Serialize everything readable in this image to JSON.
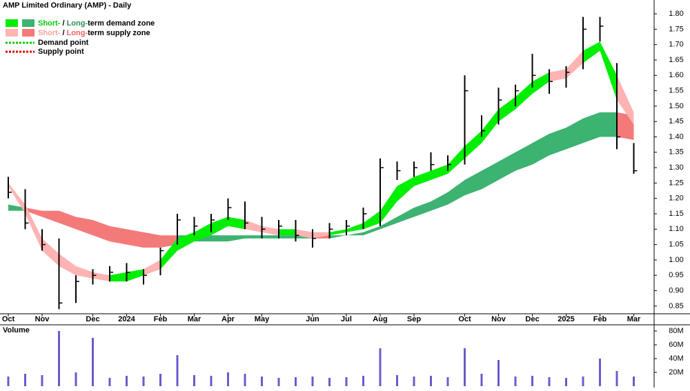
{
  "chart_data": {
    "type": "zone-candles",
    "title": "AMP Limited Ordinary (AMP) - Daily",
    "categories": [
      "Oct",
      null,
      "Nov",
      null,
      null,
      "Dec",
      null,
      "2024",
      null,
      "Feb",
      null,
      "Mar",
      null,
      "Apr",
      null,
      "May",
      null,
      null,
      "Jun",
      null,
      "Jul",
      null,
      "Aug",
      null,
      "Sep",
      null,
      null,
      "Oct",
      null,
      "Nov",
      null,
      "Dec",
      null,
      "2025",
      null,
      "Feb",
      null,
      "Mar"
    ],
    "high": [
      1.27,
      1.23,
      1.1,
      1.07,
      0.95,
      0.97,
      0.98,
      0.99,
      0.97,
      1.04,
      1.15,
      1.14,
      1.15,
      1.2,
      1.19,
      1.14,
      1.13,
      1.13,
      1.1,
      1.12,
      1.13,
      1.17,
      1.33,
      1.32,
      1.32,
      1.35,
      1.34,
      1.6,
      1.47,
      1.56,
      1.57,
      1.67,
      1.62,
      1.63,
      1.79,
      1.79,
      1.64,
      1.38
    ],
    "low": [
      1.2,
      1.1,
      1.03,
      0.84,
      0.86,
      0.92,
      0.93,
      0.93,
      0.92,
      0.95,
      1.05,
      1.08,
      1.09,
      1.13,
      1.1,
      1.07,
      1.07,
      1.06,
      1.04,
      1.07,
      1.08,
      1.1,
      1.11,
      1.26,
      1.27,
      1.29,
      1.29,
      1.31,
      1.4,
      1.44,
      1.5,
      1.56,
      1.54,
      1.56,
      1.62,
      1.71,
      1.36,
      1.28
    ],
    "close": [
      1.22,
      1.12,
      1.05,
      0.86,
      0.93,
      0.95,
      0.96,
      0.96,
      0.95,
      1.03,
      1.13,
      1.11,
      1.13,
      1.17,
      1.12,
      1.1,
      1.11,
      1.08,
      1.07,
      1.1,
      1.11,
      1.15,
      1.3,
      1.29,
      1.3,
      1.31,
      1.31,
      1.55,
      1.42,
      1.52,
      1.55,
      1.6,
      1.58,
      1.61,
      1.75,
      1.76,
      1.4,
      1.29
    ],
    "short_band": {
      "upper": [
        1.25,
        1.18,
        1.07,
        1.02,
        0.98,
        0.96,
        0.95,
        0.96,
        0.97,
        1.0,
        1.07,
        1.09,
        1.12,
        1.14,
        1.13,
        1.11,
        1.1,
        1.1,
        1.09,
        1.09,
        1.1,
        1.12,
        1.16,
        1.24,
        1.27,
        1.29,
        1.31,
        1.37,
        1.42,
        1.49,
        1.53,
        1.58,
        1.61,
        1.62,
        1.68,
        1.71,
        1.6,
        1.48
      ],
      "lower": [
        1.24,
        1.15,
        1.03,
        0.98,
        0.95,
        0.94,
        0.93,
        0.93,
        0.95,
        0.97,
        1.03,
        1.06,
        1.08,
        1.11,
        1.1,
        1.09,
        1.08,
        1.08,
        1.07,
        1.08,
        1.09,
        1.1,
        1.12,
        1.19,
        1.24,
        1.26,
        1.28,
        1.33,
        1.38,
        1.45,
        1.49,
        1.54,
        1.58,
        1.59,
        1.64,
        1.68,
        1.52,
        1.44
      ],
      "demand_color": "#00ee00",
      "supply_color": "#ffb3b3"
    },
    "long_band": {
      "upper": [
        1.18,
        1.17,
        1.16,
        1.16,
        1.14,
        1.13,
        1.11,
        1.1,
        1.09,
        1.08,
        1.08,
        1.08,
        1.08,
        1.08,
        1.08,
        1.08,
        1.08,
        1.08,
        1.08,
        1.08,
        1.08,
        1.09,
        1.11,
        1.14,
        1.17,
        1.19,
        1.22,
        1.26,
        1.29,
        1.32,
        1.35,
        1.38,
        1.41,
        1.43,
        1.46,
        1.48,
        1.48,
        1.47
      ],
      "lower": [
        1.16,
        1.16,
        1.14,
        1.12,
        1.1,
        1.08,
        1.06,
        1.05,
        1.04,
        1.04,
        1.05,
        1.06,
        1.06,
        1.06,
        1.07,
        1.07,
        1.07,
        1.07,
        1.07,
        1.07,
        1.08,
        1.08,
        1.1,
        1.12,
        1.14,
        1.16,
        1.18,
        1.21,
        1.23,
        1.26,
        1.29,
        1.31,
        1.34,
        1.36,
        1.38,
        1.4,
        1.4,
        1.39
      ],
      "demand_color": "#3cb371",
      "supply_color": "#f47a7a"
    },
    "ylim": [
      0.825,
      1.845
    ],
    "yticks": [
      0.85,
      {
        "value": 0.9,
        "label": "0.90"
      },
      0.95,
      {
        "value": 1.0,
        "label": "1.00"
      },
      1.05,
      {
        "value": 1.1,
        "label": "1.10"
      },
      1.15,
      {
        "value": 1.2,
        "label": "1.20"
      },
      1.25,
      {
        "value": 1.3,
        "label": "1.30"
      },
      1.35,
      {
        "value": 1.4,
        "label": "1.40"
      },
      1.45,
      {
        "value": 1.5,
        "label": "1.50"
      },
      1.55,
      {
        "value": 1.6,
        "label": "1.60"
      },
      1.65,
      {
        "value": 1.7,
        "label": "1.70"
      },
      1.75,
      {
        "value": 1.8,
        "label": "1.80"
      }
    ],
    "volume": {
      "title": "Volume",
      "color": "#6a5acd",
      "values": [
        14,
        18,
        16,
        80,
        20,
        70,
        12,
        15,
        14,
        18,
        45,
        16,
        15,
        20,
        18,
        14,
        12,
        13,
        14,
        12,
        13,
        15,
        55,
        16,
        14,
        15,
        13,
        55,
        18,
        38,
        14,
        15,
        13,
        12,
        14,
        40,
        22,
        14
      ],
      "ylim": [
        0,
        88
      ],
      "yticks": [
        {
          "value": 20,
          "label": "20M"
        },
        {
          "value": 40,
          "label": "40M"
        },
        {
          "value": 60,
          "label": "60M"
        },
        {
          "value": 80,
          "label": "80M"
        }
      ]
    },
    "legend": {
      "demand": {
        "short": "Short-",
        "sep": " / ",
        "long": "Long-",
        "rest": "term demand zone"
      },
      "supply": {
        "short": "Short-",
        "sep": " / ",
        "long": "Long-",
        "rest": "term supply zone"
      },
      "demand_point": {
        "label": "Demand point",
        "color": "#00cc00"
      },
      "supply_point": {
        "label": "Supply point",
        "color": "#dd0000"
      }
    }
  }
}
